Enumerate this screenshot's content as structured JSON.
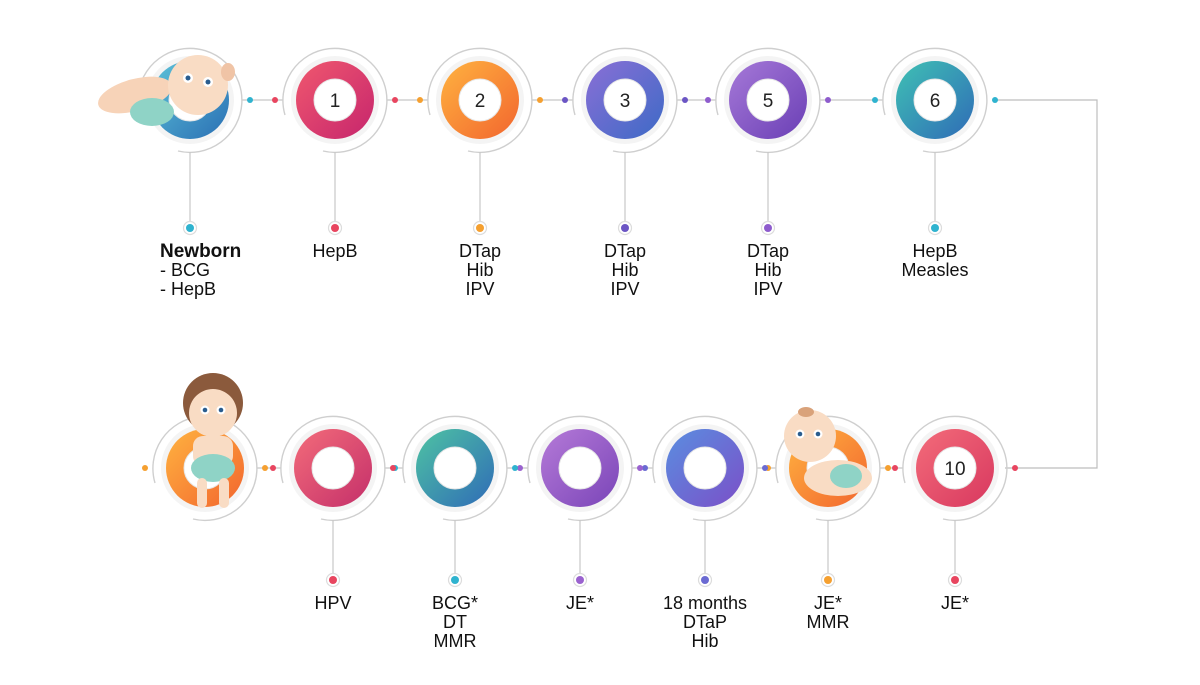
{
  "stages": [
    {
      "id": "newborn",
      "number": "",
      "baby": "lying",
      "colors": [
        "#5ec3d9",
        "#2a6fb4"
      ],
      "dot": "#2fb3cf",
      "title": "Newborn",
      "lines": [
        "- BCG",
        "- HepB"
      ]
    },
    {
      "id": "m1",
      "number": "1",
      "baby": "",
      "colors": [
        "#f0586e",
        "#c6256d"
      ],
      "dot": "#e8455f",
      "title": "",
      "lines": [
        "HepB"
      ]
    },
    {
      "id": "m2",
      "number": "2",
      "baby": "",
      "colors": [
        "#ffb340",
        "#f2652e"
      ],
      "dot": "#f5a030",
      "title": "",
      "lines": [
        "DTap",
        "Hib",
        "IPV"
      ]
    },
    {
      "id": "m3",
      "number": "3",
      "baby": "",
      "colors": [
        "#8a6fd6",
        "#3d6ac6"
      ],
      "dot": "#6b55c4",
      "title": "",
      "lines": [
        "DTap",
        "Hib",
        "IPV"
      ]
    },
    {
      "id": "m5",
      "number": "5",
      "baby": "",
      "colors": [
        "#a679d8",
        "#6a3fb5"
      ],
      "dot": "#8e5ccd",
      "title": "",
      "lines": [
        "DTap",
        "Hib",
        "IPV"
      ]
    },
    {
      "id": "m6",
      "number": "6",
      "baby": "",
      "colors": [
        "#3fc1b4",
        "#2f6bb7"
      ],
      "dot": "#2fb3cf",
      "title": "",
      "lines": [
        "HepB",
        "Measles"
      ]
    },
    {
      "id": "m10",
      "number": "10",
      "baby": "",
      "colors": [
        "#f36c7a",
        "#d8385f"
      ],
      "dot": "#e8455f",
      "title": "",
      "lines": [
        "JE*"
      ]
    },
    {
      "id": "crawl",
      "number": "",
      "baby": "crawling",
      "colors": [
        "#ffb340",
        "#f2652e"
      ],
      "dot": "#f5a030",
      "title": "",
      "lines": [
        "JE*",
        "MMR"
      ]
    },
    {
      "id": "m18",
      "number": "",
      "baby": "",
      "colors": [
        "#5a8ee0",
        "#7b4fc8"
      ],
      "dot": "#6b6ad2",
      "title": "",
      "lines": [
        "18 months",
        "DTaP",
        "Hib"
      ]
    },
    {
      "id": "je",
      "number": "",
      "baby": "",
      "colors": [
        "#b57ad8",
        "#7a45b8"
      ],
      "dot": "#9a62cf",
      "title": "",
      "lines": [
        "JE*"
      ]
    },
    {
      "id": "bcg",
      "number": "",
      "baby": "",
      "colors": [
        "#4ec3a3",
        "#2f6bb7"
      ],
      "dot": "#2fb3cf",
      "title": "",
      "lines": [
        "BCG*",
        "DT",
        "MMR"
      ]
    },
    {
      "id": "hpv",
      "number": "",
      "baby": "",
      "colors": [
        "#f36c7a",
        "#c42f6a"
      ],
      "dot": "#e8455f",
      "title": "",
      "lines": [
        "HPV"
      ]
    },
    {
      "id": "toddler",
      "number": "",
      "baby": "standing",
      "colors": [
        "#ffb340",
        "#f2652e"
      ],
      "dot": "",
      "title": "",
      "lines": []
    }
  ]
}
